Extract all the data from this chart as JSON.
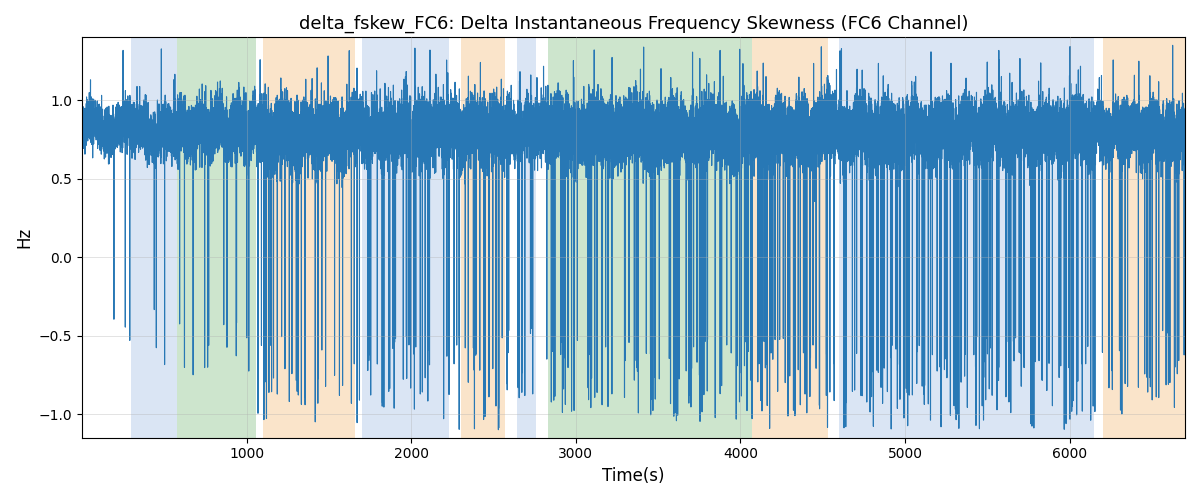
{
  "title": "delta_fskew_FC6: Delta Instantaneous Frequency Skewness (FC6 Channel)",
  "xlabel": "Time(s)",
  "ylabel": "Hz",
  "xlim": [
    0,
    6700
  ],
  "ylim": [
    -1.15,
    1.4
  ],
  "yticks": [
    -1.0,
    -0.5,
    0.0,
    0.5,
    1.0
  ],
  "xticks": [
    1000,
    2000,
    3000,
    4000,
    5000,
    6000
  ],
  "line_color": "#2878b5",
  "line_width": 0.8,
  "bg_regions": [
    {
      "xmin": 300,
      "xmax": 580,
      "color": "#aec6e8",
      "alpha": 0.45
    },
    {
      "xmin": 580,
      "xmax": 1060,
      "color": "#90c790",
      "alpha": 0.45
    },
    {
      "xmin": 1100,
      "xmax": 1660,
      "color": "#f4c48a",
      "alpha": 0.45
    },
    {
      "xmin": 1700,
      "xmax": 2230,
      "color": "#aec6e8",
      "alpha": 0.45
    },
    {
      "xmin": 2300,
      "xmax": 2570,
      "color": "#f4c48a",
      "alpha": 0.45
    },
    {
      "xmin": 2640,
      "xmax": 2760,
      "color": "#aec6e8",
      "alpha": 0.45
    },
    {
      "xmin": 2830,
      "xmax": 4070,
      "color": "#90c790",
      "alpha": 0.45
    },
    {
      "xmin": 4070,
      "xmax": 4530,
      "color": "#f4c48a",
      "alpha": 0.45
    },
    {
      "xmin": 4600,
      "xmax": 6150,
      "color": "#aec6e8",
      "alpha": 0.45
    },
    {
      "xmin": 6200,
      "xmax": 6700,
      "color": "#f4c48a",
      "alpha": 0.45
    }
  ],
  "grid_color": "#b0b0b0",
  "grid_alpha": 0.5,
  "title_fontsize": 13,
  "figsize": [
    12.0,
    5.0
  ],
  "dpi": 100
}
